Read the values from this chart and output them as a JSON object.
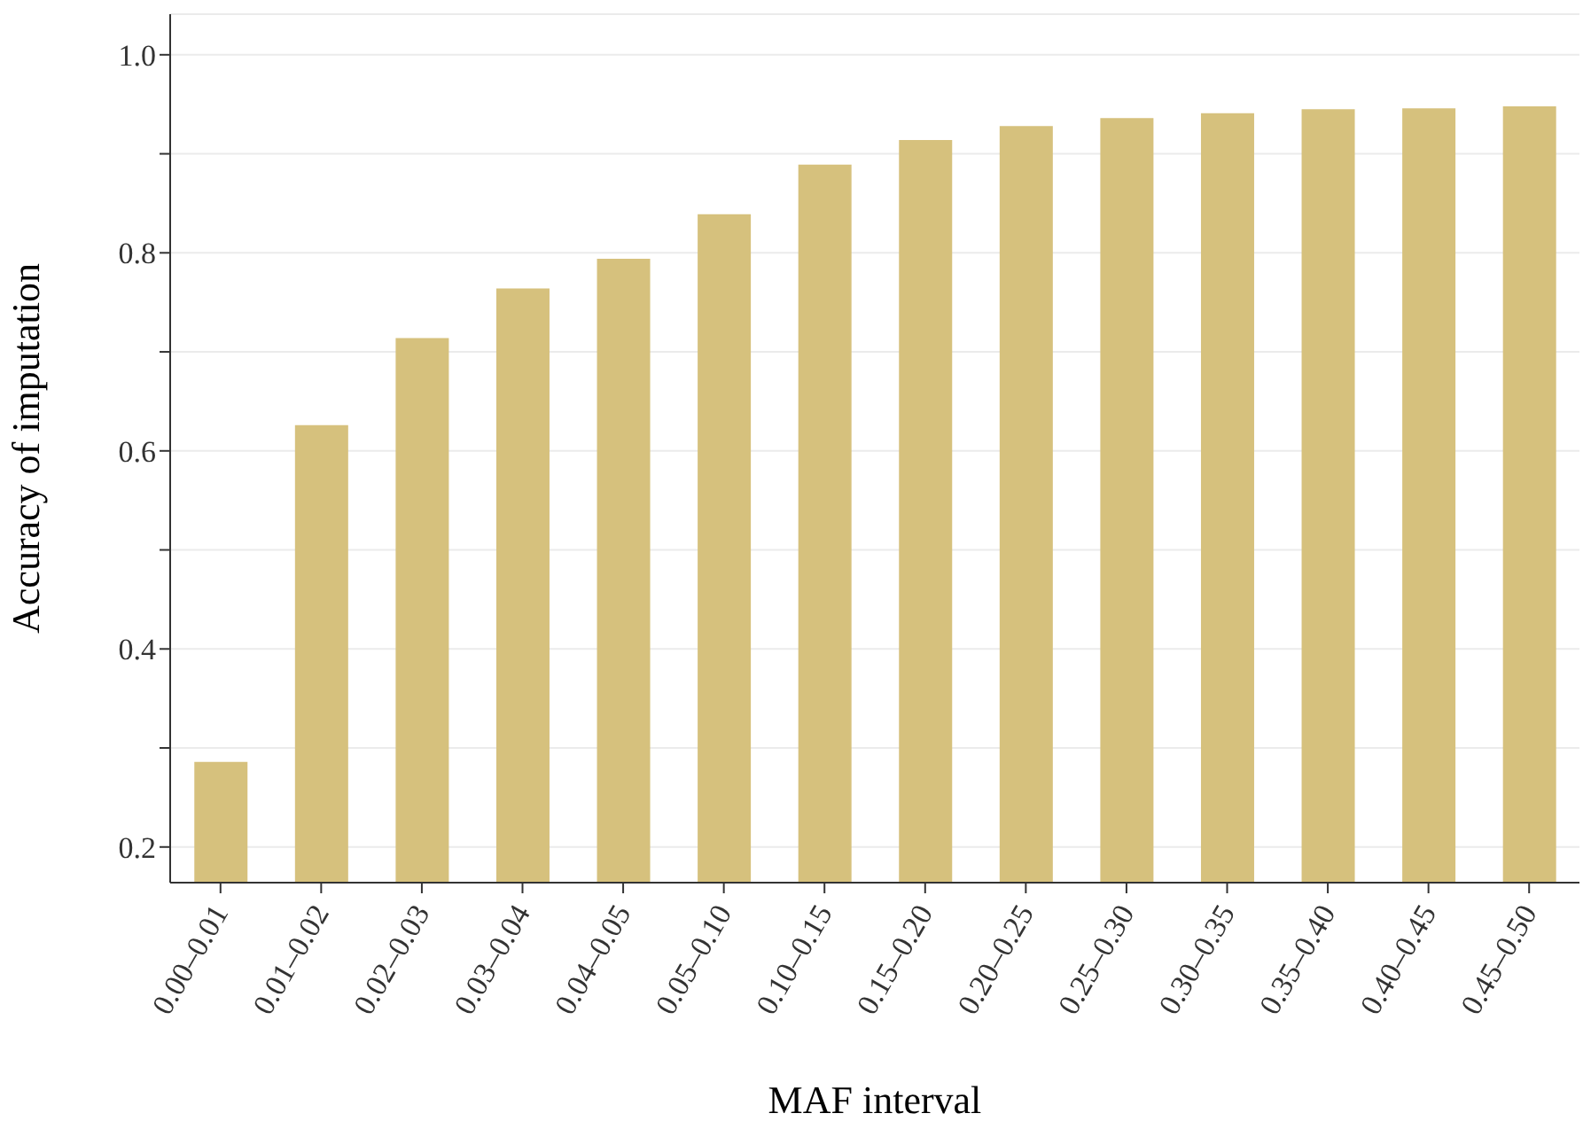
{
  "chart_data": {
    "type": "bar",
    "xlabel": "MAF interval",
    "ylabel": "Accuracy of imputation",
    "categories": [
      "0.00–0.01",
      "0.01–0.02",
      "0.02–0.03",
      "0.03–0.04",
      "0.04–0.05",
      "0.05–0.10",
      "0.10–0.15",
      "0.15–0.20",
      "0.20–0.25",
      "0.25–0.30",
      "0.30–0.35",
      "0.35–0.40",
      "0.40–0.45",
      "0.45–0.50"
    ],
    "values": [
      0.286,
      0.626,
      0.714,
      0.764,
      0.794,
      0.839,
      0.889,
      0.914,
      0.928,
      0.936,
      0.941,
      0.945,
      0.946,
      0.948
    ],
    "color": "#d6c17d",
    "ylim": [
      0.164,
      1.041
    ],
    "yticks": [
      0.2,
      {
        "value": 0.3,
        "label": null
      },
      0.4,
      {
        "value": 0.5,
        "label": null
      },
      0.6,
      {
        "value": 0.7,
        "label": null
      },
      0.8,
      {
        "value": 0.9,
        "label": null
      },
      {
        "value": 1.0,
        "label": "1.0"
      }
    ],
    "grid": "y"
  }
}
